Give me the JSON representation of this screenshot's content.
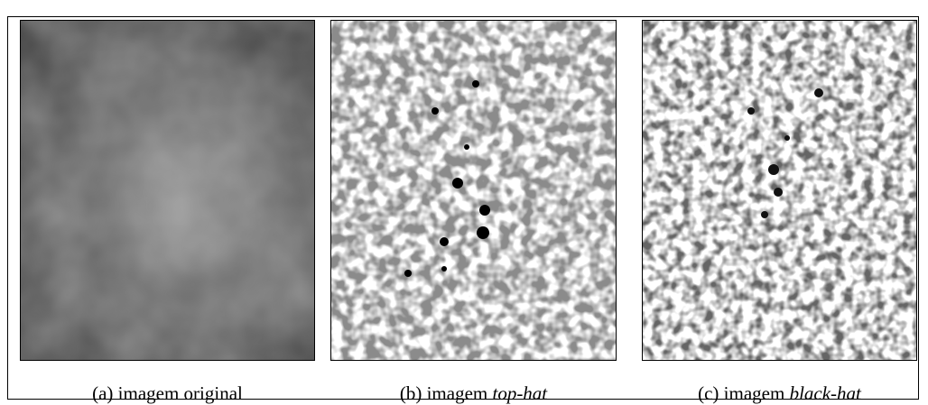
{
  "figure": {
    "panels": [
      {
        "caption_prefix": "(a) imagem original",
        "caption_italic": ""
      },
      {
        "caption_prefix": "(b) imagem ",
        "caption_italic": "top-hat"
      },
      {
        "caption_prefix": "(c) imagem ",
        "caption_italic": "black-hat"
      }
    ]
  }
}
